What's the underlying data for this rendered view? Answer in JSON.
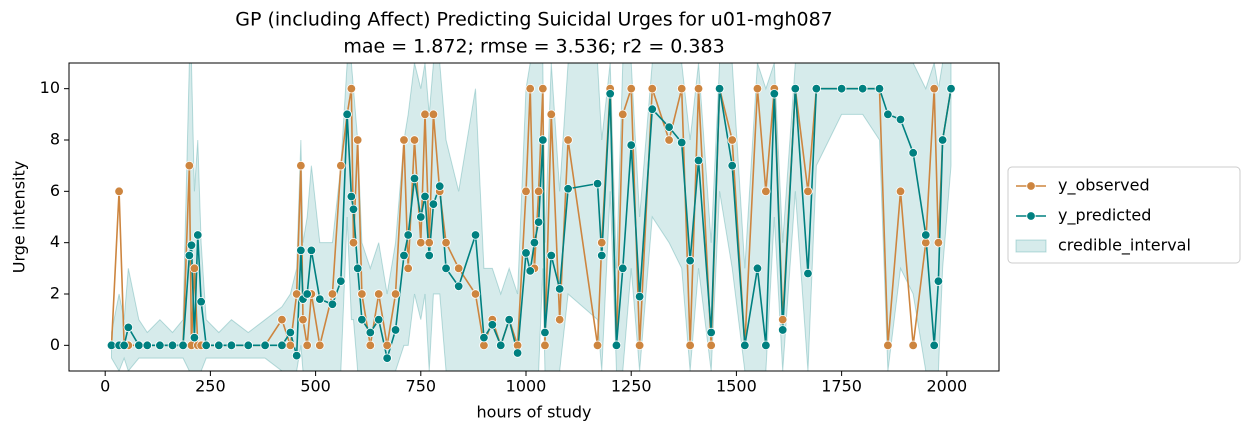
{
  "chart_data": {
    "type": "line",
    "title": "GP (including Affect) Predicting Suicidal Urges for u01-mgh087",
    "subtitle": "mae = 1.872; rmse = 3.536; r2 = 0.383",
    "xlabel": "hours of study",
    "ylabel": "Urge intensity",
    "xlim": [
      -86,
      2124
    ],
    "ylim": [
      -1,
      11
    ],
    "xticks": [
      0,
      250,
      500,
      750,
      1000,
      1250,
      1500,
      1750,
      2000
    ],
    "yticks": [
      0,
      2,
      4,
      6,
      8,
      10
    ],
    "legend": "right",
    "x": [
      15,
      33,
      45,
      55,
      80,
      100,
      130,
      160,
      185,
      200,
      205,
      212,
      220,
      228,
      240,
      270,
      300,
      340,
      380,
      420,
      440,
      455,
      465,
      470,
      480,
      490,
      510,
      540,
      560,
      575,
      585,
      590,
      600,
      610,
      630,
      650,
      670,
      690,
      710,
      720,
      735,
      750,
      760,
      770,
      780,
      795,
      810,
      840,
      880,
      900,
      920,
      940,
      960,
      980,
      1000,
      1010,
      1020,
      1030,
      1040,
      1045,
      1060,
      1080,
      1100,
      1170,
      1180,
      1200,
      1215,
      1230,
      1250,
      1270,
      1300,
      1340,
      1370,
      1390,
      1410,
      1440,
      1460,
      1490,
      1520,
      1550,
      1570,
      1590,
      1610,
      1640,
      1670,
      1690,
      1750,
      1800,
      1840,
      1860,
      1890,
      1920,
      1950,
      1970,
      1980,
      1990,
      2010
    ],
    "series": [
      {
        "name": "y_observed",
        "color": "#cd853f",
        "values": [
          0,
          6,
          0,
          0,
          0,
          0,
          0,
          0,
          0,
          7,
          0,
          3,
          0,
          0,
          0,
          0,
          0,
          0,
          0,
          1,
          0,
          2,
          7,
          1,
          0,
          2,
          0,
          2,
          7,
          9,
          10,
          4,
          8,
          2,
          0,
          2,
          0,
          2,
          8,
          3,
          8,
          4,
          9,
          4,
          9,
          6,
          4,
          3,
          2,
          0,
          1,
          0,
          1,
          0,
          6,
          10,
          3,
          6,
          10,
          0,
          9,
          1,
          8,
          0,
          4,
          10,
          0,
          9,
          10,
          0,
          10,
          8,
          10,
          0,
          10,
          0,
          10,
          8,
          0,
          10,
          6,
          10,
          1,
          10,
          6,
          10,
          10,
          10,
          10,
          0,
          6,
          0,
          4,
          10,
          4,
          8,
          10
        ]
      },
      {
        "name": "y_predicted",
        "color": "#008080",
        "values": [
          0,
          0,
          0,
          0.7,
          0,
          0,
          0,
          0,
          0,
          3.5,
          3.9,
          0.3,
          4.3,
          1.7,
          0,
          0,
          0,
          0,
          0,
          0,
          0.5,
          -0.4,
          3.7,
          1.8,
          2,
          3.7,
          1.8,
          1.6,
          2.5,
          9,
          5.8,
          5.3,
          3,
          1,
          0.5,
          1,
          -0.5,
          0.6,
          3.5,
          4.3,
          6.5,
          5,
          5.8,
          3.5,
          5.5,
          6.2,
          3,
          2.3,
          4.3,
          0.3,
          0.8,
          0,
          1,
          -0.3,
          3.6,
          2.9,
          4,
          4.8,
          8,
          0.5,
          3.5,
          2.2,
          6.1,
          6.3,
          3.5,
          9.8,
          0,
          3,
          7.8,
          1.9,
          9.2,
          8.5,
          7.9,
          3.3,
          7.2,
          0.5,
          10,
          7,
          0,
          3,
          0,
          9.8,
          0.6,
          10,
          2.8,
          10,
          10,
          10,
          10,
          9,
          8.8,
          7.5,
          4.3,
          0,
          2.5,
          8,
          10
        ]
      }
    ],
    "credible_interval": {
      "name": "credible_interval",
      "color": "#008080",
      "lower": [
        -0.5,
        -1,
        -0.5,
        -1,
        -0.5,
        -0.5,
        -0.5,
        -0.5,
        -0.5,
        -1,
        -1,
        -1,
        -1,
        -1,
        -0.5,
        -0.5,
        -0.5,
        -0.5,
        -0.5,
        -1,
        -1,
        -1,
        0,
        -1,
        -1,
        -1,
        -1,
        -1,
        -1,
        5,
        1,
        1,
        -1,
        -1,
        -1,
        -1,
        -1,
        -1,
        0,
        0,
        2,
        1,
        2,
        -1,
        2,
        2,
        -1,
        -1,
        -1,
        -1,
        -1,
        -1,
        -1,
        -1,
        -1,
        -1,
        -1,
        -1,
        3,
        -1,
        -1,
        -1,
        2,
        1,
        -1,
        6,
        -1,
        -1,
        3,
        -1,
        5,
        4,
        3,
        -1,
        3,
        -1,
        6,
        3,
        -1,
        -1,
        -1,
        5,
        -1,
        6,
        -1,
        7,
        9,
        9,
        8,
        -1,
        3,
        2,
        -1,
        -1,
        -1,
        3,
        7
      ],
      "upper": [
        0.5,
        2,
        1,
        3,
        1,
        0.5,
        1,
        0.5,
        1,
        11,
        11,
        6,
        8,
        4,
        1,
        0.5,
        1,
        0.5,
        1,
        1.5,
        2,
        3,
        8,
        4,
        5,
        7,
        4,
        4,
        7,
        11,
        11,
        10,
        8,
        4,
        3,
        4,
        2,
        4,
        8,
        9,
        11,
        10,
        11,
        9,
        11,
        11,
        8,
        6,
        10,
        3,
        3,
        2,
        3,
        2,
        10,
        11,
        11,
        11,
        11,
        4,
        11,
        6,
        11,
        11,
        8,
        11,
        3,
        11,
        11,
        5,
        11,
        11,
        11,
        8,
        11,
        4,
        11,
        11,
        3,
        11,
        10,
        11,
        4,
        11,
        11,
        11,
        11,
        11,
        11,
        11,
        11,
        11,
        10,
        11,
        10,
        11,
        11
      ]
    }
  }
}
